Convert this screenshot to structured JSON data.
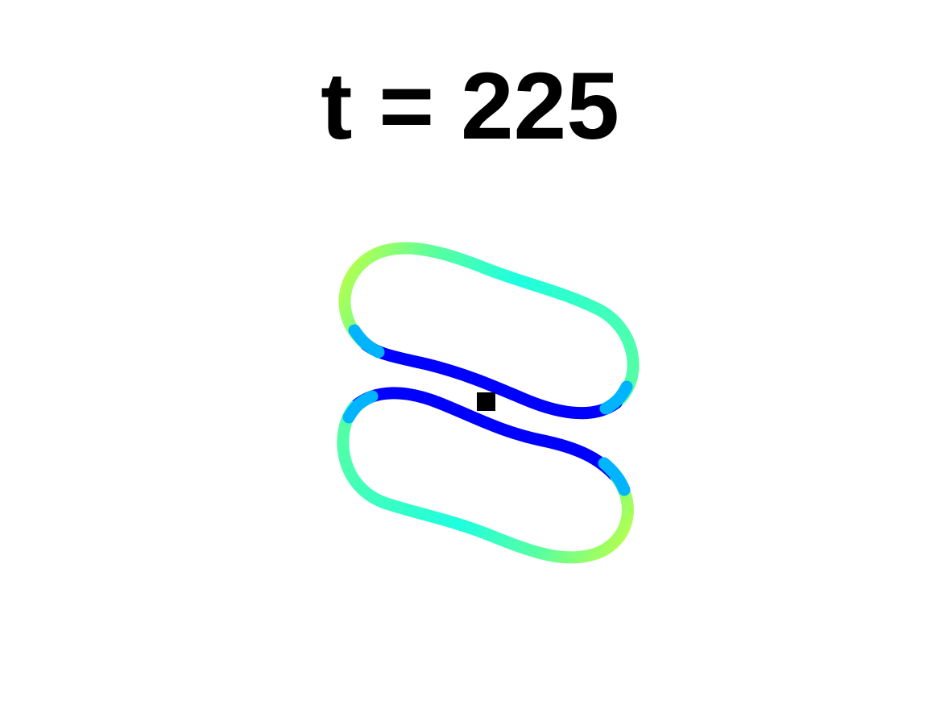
{
  "title": "t = 225",
  "colors": {
    "background": "#ffffff",
    "title": "#000000",
    "marker": "#000000",
    "colormap": [
      "#0000ff",
      "#00b4ff",
      "#1effe0",
      "#5aff9e",
      "#c8ff3c"
    ]
  }
}
